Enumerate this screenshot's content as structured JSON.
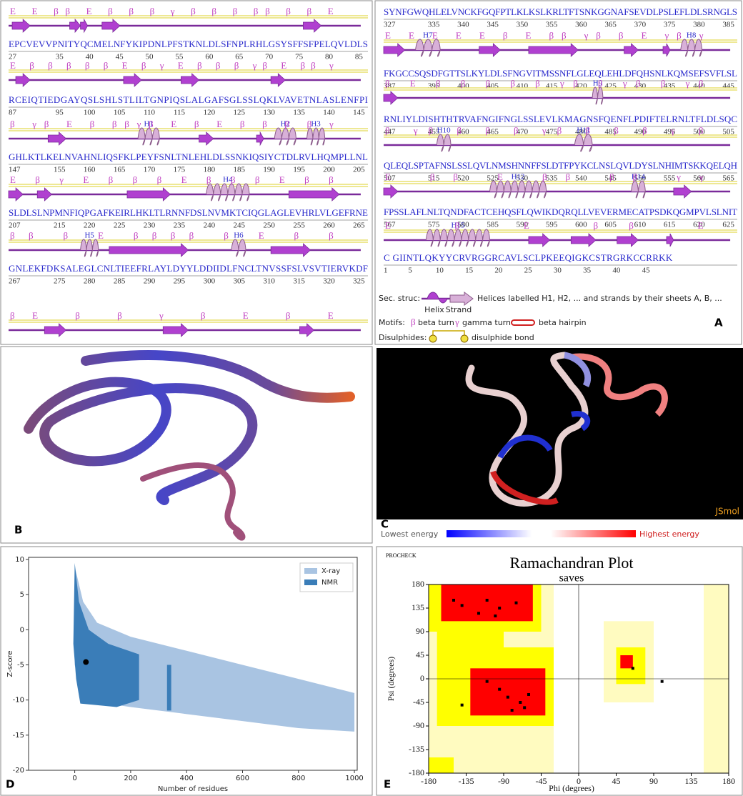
{
  "panel_labels": {
    "a": "A",
    "b": "B",
    "c": "C",
    "d": "D",
    "e": "E"
  },
  "topology": {
    "left_rows": [
      {
        "annotations": "E  E ββ     E    β    β    β   γ        β   β  β ββ β     β   E",
        "sequence": "EPCVEVVPNITYQCMELNFYKIPDNLPFSTKNLDLSFNPLRHLGSYSFFSFPELQVLDLS",
        "numbers": [
          "27",
          "35",
          "40",
          "45",
          "50",
          "55",
          "60",
          "65",
          "70",
          "75",
          "80",
          "85"
        ],
        "helices": []
      },
      {
        "annotations": "E  β β β β   β   E   β   γ    E  β β β γβ   E                ββ  γ",
        "sequence": "RCEIQTIEDGAYQSLSHLSTLILTGNPIQSLALGAFSGLSSLQKLVAVETNLASLENFPI",
        "numbers": [
          "87",
          "95",
          "100",
          "105",
          "110",
          "115",
          "120",
          "125",
          "130",
          "135",
          "140",
          "145"
        ],
        "helices": []
      },
      {
        "annotations": "β γβ  E  β              ββγβ    E  β      E  β  β  β   β  γ",
        "sequence": "GHLKTLKELNVAHNLIQSFKLPEYFSNLTNLEHLDLSSNKIQSIYCTDLRVLHQMPLLNL",
        "numbers": [
          "147",
          "155",
          "160",
          "165",
          "170",
          "175",
          "180",
          "185",
          "190",
          "195",
          "200",
          "205"
        ],
        "helices": [
          "H1",
          "H2",
          "H3"
        ]
      },
      {
        "annotations": "E  β  γ  E β β β  E       β                  β   β  E    β   β",
        "sequence": "SLDLSLNPMNFIQPGAFKEIRLHKLTLRNNFDSLNVMKTCIQGLAGLEVHRLVLGEFRNE",
        "numbers": [
          "207",
          "215",
          "220",
          "225",
          "230",
          "235",
          "240",
          "245",
          "250",
          "255",
          "260",
          "265"
        ],
        "helices": [
          "H4"
        ]
      },
      {
        "annotations": "ββ  β   E              ββββ  β  E     β  β",
        "sequence": "GNLEKFDKSALEGLCNLTIEEFRLAYLDYYLDDIIDLFNCLTNVSSFSLVSVTIERVKDF",
        "numbers": [
          "267",
          "275",
          "280",
          "285",
          "290",
          "295",
          "300",
          "305",
          "310",
          "315",
          "320",
          "325"
        ],
        "helices": [
          "H5",
          "H6"
        ]
      },
      {
        "annotations": "βE   β   β  γ   β   E                β   E"
      }
    ],
    "right_rows": [
      {
        "sequence": "SYNFGWQHLELVNCKFGQFPTLKLKSLKRLTFTSNKGGNAFSEVDLPSLEFLDLSRNGLS",
        "numbers": [
          "327",
          "335",
          "340",
          "345",
          "350",
          "355",
          "360",
          "365",
          "370",
          "375",
          "380",
          "385"
        ],
        "helices": []
      },
      {
        "annotations": "E      E    E     E    E  β   E  ββ  γβ  β  E  γβ γ",
        "sequence": "FKGCCSQSDFGTTSLKYLDLSFNGVITMSSNFLGLEQLEHLDFQHSNLKQMSEFSVFLSL",
        "numbers": [
          "387",
          "395",
          "400",
          "405",
          "410",
          "415",
          "420",
          "425",
          "430",
          "435",
          "440",
          "445"
        ],
        "helices": [
          "H7",
          "H8"
        ]
      },
      {
        "annotations": "β  E     β  β  β  β  β  γβ  β     γβ  β  γβ",
        "sequence": "RNLIYLDISHTHTRVAFNGIFNGLSSLEVLKMAGNSFQENFLPDIFTELRNLTFLDLSQC",
        "numbers": [
          "447",
          "455",
          "460",
          "465",
          "470",
          "475",
          "480",
          "485",
          "490",
          "495",
          "500",
          "505"
        ],
        "helices": [
          "H9"
        ]
      },
      {
        "annotations": "β   γβ   β   β     β     γβ  β    β  β  γ  β",
        "sequence": "QLEQLSPTAFNSLSSLQVLNMSHNNFFSLDTFPYKCLNSLQVLDYSLNHIMTSKKQELQH",
        "numbers": [
          "507",
          "515",
          "520",
          "525",
          "530",
          "535",
          "540",
          "545",
          "550",
          "555",
          "560",
          "565"
        ],
        "helices": [
          "H10",
          "H11"
        ]
      },
      {
        "annotations": "E              ββ   E     ββ   ββ   γγ",
        "sequence": "FPSSLAFLNLTQNDFACTCEHQSFLQWIKDQRQLLVEVERMECATPSDKQGMPVLSLNIT",
        "numbers": [
          "567",
          "575",
          "580",
          "585",
          "590",
          "595",
          "600",
          "605",
          "610",
          "615",
          "620",
          "625"
        ],
        "helices": [
          "H12",
          "H14"
        ]
      },
      {
        "annotations": "E   β  E  ββ  E",
        "sequence": "C   GIINTLQKYYCRVRGGRCAVLSCLPKEEQIGKCSTRGRKCCRRKK",
        "numbers": [
          "1",
          "5",
          "10",
          "15",
          "20",
          "25",
          "30",
          "35",
          "40",
          "45"
        ],
        "helices": [
          "H15"
        ]
      }
    ],
    "legend": {
      "sec_struc": "Sec. struc:",
      "sec_text": "Helices labelled H1, H2, ... and strands by their sheets A, B, ...",
      "helix": "Helix",
      "strand": "Strand",
      "motifs": "Motifs:",
      "beta_symbol": "β",
      "beta_turn": "beta turn",
      "gamma_symbol": "γ",
      "gamma_turn": "gamma turn",
      "hairpin": "beta hairpin",
      "disulphides": "Disulphides:",
      "bond": "disulphide bond"
    }
  },
  "jsmol": {
    "brand": "JSmol",
    "low": "Lowest energy",
    "high": "Highest energy"
  },
  "zscore_chart": {
    "type": "scatter",
    "xlabel": "Number of residues",
    "ylabel": "Z-score",
    "xlim": [
      -165,
      1010
    ],
    "ylim": [
      -20,
      10.3
    ],
    "xticks": [
      0,
      200,
      400,
      600,
      800,
      1000
    ],
    "yticks": [
      -20,
      -15,
      -10,
      -5,
      0,
      5,
      10
    ],
    "series": [
      {
        "name": "X-ray",
        "color": "#a9c4e2"
      },
      {
        "name": "NMR",
        "color": "#3a7db8"
      }
    ],
    "highlight": {
      "x": 40,
      "y": -4.6,
      "color": "#000000"
    }
  },
  "ramachandran": {
    "source": "PROCHECK",
    "title": "Ramachandran Plot",
    "subtitle": "saves",
    "xlabel": "Phi (degrees)",
    "ylabel": "Psi (degrees)",
    "xlim": [
      -180,
      180
    ],
    "ylim": [
      -180,
      180
    ],
    "xticks": [
      -180,
      -135,
      -90,
      -45,
      0,
      45,
      90,
      135,
      180
    ],
    "yticks": [
      -180,
      -135,
      -90,
      -45,
      0,
      45,
      90,
      135,
      180
    ]
  }
}
